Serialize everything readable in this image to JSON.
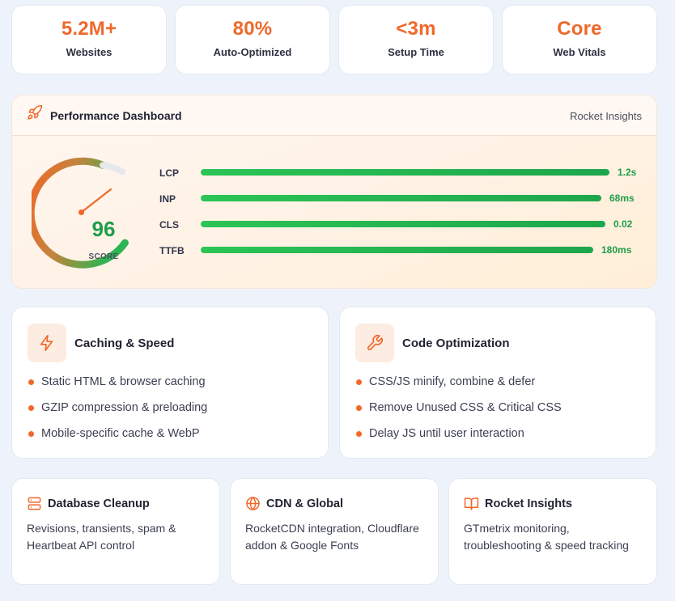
{
  "stats": [
    {
      "value": "5.2M+",
      "label": "Websites"
    },
    {
      "value": "80%",
      "label": "Auto-Optimized"
    },
    {
      "value": "<3m",
      "label": "Setup Time"
    },
    {
      "value": "Core",
      "label": "Web Vitals"
    }
  ],
  "dashboard": {
    "icon": "rocket-icon",
    "title": "Performance Dashboard",
    "aside": "Rocket Insights",
    "score": "96",
    "score_label": "SCORE",
    "metrics": [
      {
        "name": "LCP",
        "value": "1.2s",
        "fill": 1.0
      },
      {
        "name": "INP",
        "value": "68ms",
        "fill": 0.98
      },
      {
        "name": "CLS",
        "value": "0.02",
        "fill": 0.99
      },
      {
        "name": "TTFB",
        "value": "180ms",
        "fill": 0.96
      }
    ]
  },
  "features": [
    {
      "icon": "lightning-icon",
      "title": "Caching & Speed",
      "items": [
        "Static HTML & browser caching",
        "GZIP compression & preloading",
        "Mobile-specific cache & WebP"
      ]
    },
    {
      "icon": "wrench-icon",
      "title": "Code Optimization",
      "items": [
        "CSS/JS minify, combine & defer",
        "Remove Unused CSS & Critical CSS",
        "Delay JS until user interaction"
      ]
    }
  ],
  "mini_cards": [
    {
      "icon": "database-icon",
      "title": "Database Cleanup",
      "description": "Revisions, transients, spam & Heartbeat API control"
    },
    {
      "icon": "globe-icon",
      "title": "CDN & Global",
      "description": "RocketCDN integration, Cloudflare addon & Google Fonts"
    },
    {
      "icon": "book-icon",
      "title": "Rocket Insights",
      "description": "GTmetrix monitoring, troubleshooting & speed tracking"
    }
  ],
  "colors": {
    "accent": "#f0682a",
    "success": "#1e9e49",
    "background": "#eef3fb"
  }
}
